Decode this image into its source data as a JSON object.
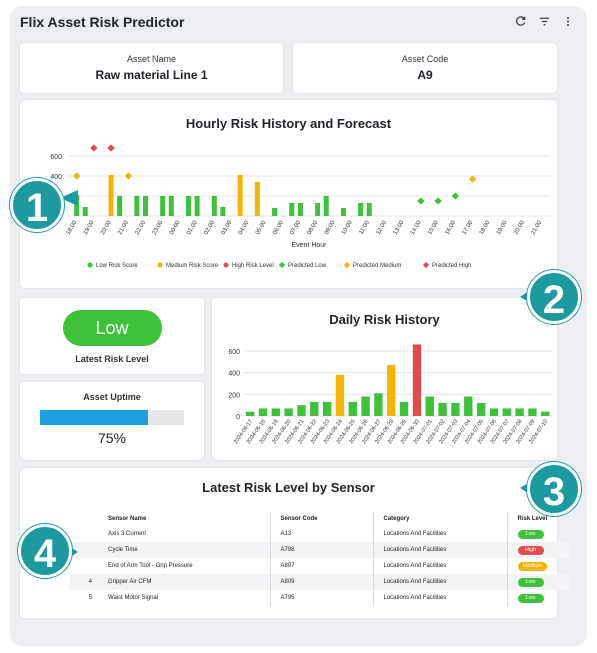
{
  "app": {
    "title": "Flix Asset Risk Predictor"
  },
  "toolbar": {
    "refresh_icon": "refresh-icon",
    "filter_icon": "filter-icon",
    "more_icon": "more-vertical-icon"
  },
  "asset": {
    "name_label": "Asset Name",
    "name_value": "Raw material Line 1",
    "code_label": "Asset Code",
    "code_value": "A9"
  },
  "colors": {
    "low": "#3ec23a",
    "medium": "#f5b400",
    "high": "#e04b4b",
    "accent": "#1da0dd",
    "callout": "#1c9aa0"
  },
  "latest": {
    "level": "Low",
    "label": "Latest Risk Level"
  },
  "uptime": {
    "label": "Asset Uptime",
    "value": "75%",
    "fraction": 0.75
  },
  "callouts": [
    "1",
    "2",
    "3",
    "4"
  ],
  "chart_data": [
    {
      "type": "bar",
      "title": "Hourly Risk History and Forecast",
      "xlabel": "Event Hour",
      "ylabel": "",
      "yticks": [
        200,
        400,
        600
      ],
      "ylim": [
        0,
        700
      ],
      "categories": [
        "18:00",
        "19:00",
        "20:00",
        "21:00",
        "22:00",
        "23:00",
        "00:00",
        "01:00",
        "02:00",
        "03:00",
        "04:00",
        "05:00",
        "06:00",
        "07:00",
        "08:00",
        "09:00",
        "10:00",
        "11:00",
        "12:00",
        "13:00",
        "14:00",
        "15:00",
        "16:00",
        "17:00",
        "18:00",
        "19:00",
        "20:00",
        "21:00"
      ],
      "history": [
        {
          "x": "18:00",
          "value": 210,
          "level": "low"
        },
        {
          "x": "18:30",
          "value": 90,
          "level": "low"
        },
        {
          "x": "20:00",
          "value": 410,
          "level": "medium"
        },
        {
          "x": "20:30",
          "value": 200,
          "level": "low"
        },
        {
          "x": "21:30",
          "value": 200,
          "level": "low"
        },
        {
          "x": "22:00",
          "value": 200,
          "level": "low"
        },
        {
          "x": "23:00",
          "value": 200,
          "level": "low"
        },
        {
          "x": "23:30",
          "value": 200,
          "level": "low"
        },
        {
          "x": "00:30",
          "value": 200,
          "level": "low"
        },
        {
          "x": "01:00",
          "value": 200,
          "level": "low"
        },
        {
          "x": "02:00",
          "value": 200,
          "level": "low"
        },
        {
          "x": "02:30",
          "value": 90,
          "level": "low"
        },
        {
          "x": "03:30",
          "value": 410,
          "level": "medium"
        },
        {
          "x": "04:30",
          "value": 340,
          "level": "medium"
        },
        {
          "x": "05:30",
          "value": 80,
          "level": "low"
        },
        {
          "x": "06:30",
          "value": 130,
          "level": "low"
        },
        {
          "x": "07:00",
          "value": 130,
          "level": "low"
        },
        {
          "x": "08:00",
          "value": 130,
          "level": "low"
        },
        {
          "x": "08:30",
          "value": 200,
          "level": "low"
        },
        {
          "x": "09:30",
          "value": 80,
          "level": "low"
        },
        {
          "x": "10:30",
          "value": 130,
          "level": "low"
        },
        {
          "x": "11:00",
          "value": 130,
          "level": "low"
        }
      ],
      "forecast": [
        {
          "x": "14:00",
          "value": 150,
          "level": "low"
        },
        {
          "x": "15:00",
          "value": 150,
          "level": "low"
        },
        {
          "x": "16:00",
          "value": 200,
          "level": "low"
        },
        {
          "x": "17:00",
          "value": 370,
          "level": "medium"
        },
        {
          "x": "18:00",
          "value": 400,
          "level": "medium"
        },
        {
          "x": "19:00",
          "value": 680,
          "level": "high"
        },
        {
          "x": "20:00",
          "value": 680,
          "level": "high"
        },
        {
          "x": "21:00",
          "value": 400,
          "level": "medium"
        }
      ],
      "legend": [
        "Low Risk Score",
        "Medium Risk Score",
        "High Risk Level",
        "Predicted Low",
        "Predicted Medium",
        "Predicted High"
      ],
      "legend_position": "bottom"
    },
    {
      "type": "bar",
      "title": "Daily Risk History",
      "xlabel": "",
      "ylabel": "",
      "yticks": [
        0,
        200,
        400,
        600
      ],
      "ylim": [
        0,
        700
      ],
      "categories": [
        "2024-06-17",
        "2024-06-18",
        "2024-06-19",
        "2024-06-20",
        "2024-06-21",
        "2024-06-22",
        "2024-06-23",
        "2024-06-24",
        "2024-06-25",
        "2024-06-26",
        "2024-06-27",
        "2024-06-28",
        "2024-06-29",
        "2024-06-30",
        "2024-07-01",
        "2024-07-02",
        "2024-07-03",
        "2024-07-04",
        "2024-07-05",
        "2024-07-06",
        "2024-07-07",
        "2024-07-08",
        "2024-07-09",
        "2024-07-10"
      ],
      "tick_labels": [
        "2024-06-17",
        "2024-06-18",
        "2024-06-19",
        "2024-06-20",
        "2024-06-21",
        "2024-06-22",
        "2024-06-23",
        "2024-06-24",
        "2024-06-25",
        "2024-06-26",
        "2024-06-27",
        "2024-06-28",
        "2024-06-29",
        "2024-06-30",
        "2024-07-01",
        "2024-07-02",
        "2024-07-03",
        "2024-07-04",
        "2024-07-05",
        "2024-07-06",
        "2024-07-07",
        "2024-07-08",
        "2024-07-09",
        "2024-07-10"
      ],
      "values": [
        40,
        70,
        70,
        70,
        100,
        130,
        130,
        380,
        130,
        180,
        210,
        470,
        130,
        660,
        180,
        120,
        120,
        180,
        120,
        70,
        70,
        70,
        70,
        40
      ],
      "levels": [
        "low",
        "low",
        "low",
        "low",
        "low",
        "low",
        "low",
        "medium",
        "low",
        "low",
        "low",
        "medium",
        "low",
        "high",
        "low",
        "low",
        "low",
        "low",
        "low",
        "low",
        "low",
        "low",
        "low",
        "low"
      ]
    }
  ],
  "sensors": {
    "title": "Latest Risk Level by Sensor",
    "columns": [
      "Sensor Name",
      "Sensor Code",
      "Category",
      "Risk Level"
    ],
    "rows": [
      {
        "idx": "",
        "name": "Axis 3 Current",
        "code": "A13",
        "category": "Locations And Facilities",
        "risk": "Low",
        "level": "low"
      },
      {
        "idx": "",
        "name": "Cycle Time",
        "code": "A798",
        "category": "Locations And Facilities",
        "risk": "High",
        "level": "high"
      },
      {
        "idx": "",
        "name": "End of Arm Tool - Grip Pressure",
        "code": "A807",
        "category": "Locations And Facilities",
        "risk": "Medium",
        "level": "medium"
      },
      {
        "idx": "4",
        "name": "Gripper Air CFM",
        "code": "A809",
        "category": "Locations And Facilities",
        "risk": "Low",
        "level": "low"
      },
      {
        "idx": "5",
        "name": "Waist Motor Signal",
        "code": "A795",
        "category": "Locations And Facilities",
        "risk": "Low",
        "level": "low"
      }
    ]
  }
}
